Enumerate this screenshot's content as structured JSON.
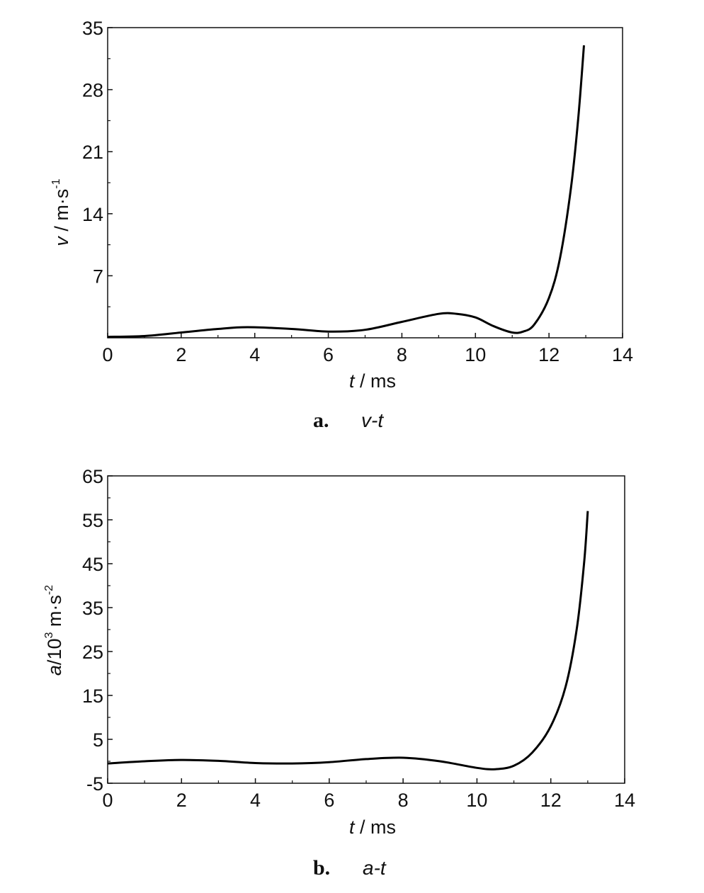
{
  "chart_data": [
    {
      "type": "line",
      "caption": {
        "letter": "a.",
        "text": "v-t"
      },
      "xlabel": {
        "var": "t",
        "unit": " / ms"
      },
      "ylabel": {
        "var": "v",
        "unit": " / m·s",
        "exp": "-1"
      },
      "xlim": [
        0,
        14
      ],
      "ylim": [
        0,
        35
      ],
      "xticks": [
        0,
        2,
        4,
        6,
        8,
        10,
        12,
        14
      ],
      "yticks": [
        7,
        14,
        21,
        28,
        35
      ],
      "series": [
        {
          "color": "#000000",
          "points": [
            [
              0,
              0.1
            ],
            [
              1,
              0.2
            ],
            [
              2,
              0.6
            ],
            [
              3,
              1.0
            ],
            [
              3.8,
              1.2
            ],
            [
              5,
              1.0
            ],
            [
              6,
              0.7
            ],
            [
              7,
              0.9
            ],
            [
              8,
              1.8
            ],
            [
              9,
              2.7
            ],
            [
              9.5,
              2.7
            ],
            [
              10,
              2.3
            ],
            [
              10.5,
              1.3
            ],
            [
              11,
              0.6
            ],
            [
              11.3,
              0.7
            ],
            [
              11.6,
              1.5
            ],
            [
              12,
              4.5
            ],
            [
              12.3,
              9
            ],
            [
              12.6,
              17
            ],
            [
              12.8,
              25
            ],
            [
              12.95,
              33
            ]
          ]
        }
      ]
    },
    {
      "type": "line",
      "caption": {
        "letter": "b.",
        "text": "a-t"
      },
      "xlabel": {
        "var": "t",
        "unit": " / ms"
      },
      "ylabel": {
        "var": "a",
        "unit": "/10",
        "exp": "3",
        "unit2": " m·s",
        "exp2": "-2"
      },
      "xlim": [
        0,
        14
      ],
      "ylim": [
        -5,
        65
      ],
      "xticks": [
        0,
        2,
        4,
        6,
        8,
        10,
        12,
        14
      ],
      "yticks": [
        -5,
        5,
        15,
        25,
        35,
        45,
        55,
        65
      ],
      "series": [
        {
          "color": "#000000",
          "points": [
            [
              0,
              -0.5
            ],
            [
              1,
              0
            ],
            [
              2,
              0.3
            ],
            [
              3,
              0.1
            ],
            [
              4,
              -0.4
            ],
            [
              5,
              -0.5
            ],
            [
              6,
              -0.2
            ],
            [
              7,
              0.5
            ],
            [
              8,
              0.8
            ],
            [
              9,
              0
            ],
            [
              10,
              -1.5
            ],
            [
              10.5,
              -1.8
            ],
            [
              11,
              -1
            ],
            [
              11.5,
              2
            ],
            [
              12,
              8
            ],
            [
              12.4,
              17
            ],
            [
              12.7,
              30
            ],
            [
              12.9,
              45
            ],
            [
              13.0,
              57
            ]
          ]
        }
      ]
    }
  ]
}
